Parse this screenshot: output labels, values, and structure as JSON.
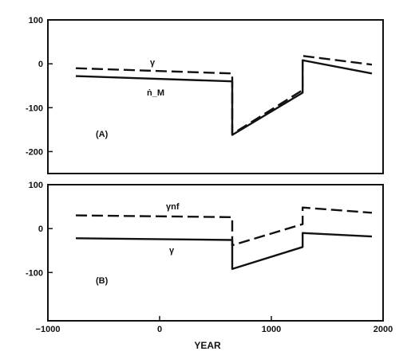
{
  "chart_data": [
    {
      "type": "line",
      "panel_label": "(A)",
      "xlim": [
        -1000,
        2000
      ],
      "ylim": [
        -250,
        100
      ],
      "yticks": [
        100,
        0,
        -100,
        -200
      ],
      "grid": false,
      "series": [
        {
          "name": "γ",
          "style": "dashed",
          "x": [
            -750,
            650,
            650,
            1280,
            1280,
            1900
          ],
          "y": [
            -10,
            -22,
            -160,
            -60,
            18,
            -2
          ]
        },
        {
          "name": "ṅ_M",
          "style": "solid",
          "x": [
            -750,
            650,
            650,
            1280,
            1280,
            1900
          ],
          "y": [
            -28,
            -40,
            -162,
            -66,
            8,
            -22
          ]
        }
      ]
    },
    {
      "type": "line",
      "panel_label": "(B)",
      "xlim": [
        -1000,
        2000
      ],
      "ylim": [
        -210,
        100
      ],
      "yticks": [
        100,
        0,
        -100
      ],
      "grid": false,
      "xlabel": "YEAR",
      "xticks": [
        -1000,
        0,
        1000,
        2000
      ],
      "series": [
        {
          "name": "γnf",
          "style": "dashed",
          "x": [
            -750,
            650,
            650,
            1280,
            1280,
            1900
          ],
          "y": [
            30,
            26,
            -38,
            10,
            48,
            36
          ]
        },
        {
          "name": "γ",
          "style": "solid",
          "x": [
            -750,
            650,
            650,
            1280,
            1280,
            1900
          ],
          "y": [
            -22,
            -26,
            -92,
            -42,
            -10,
            -18
          ]
        }
      ]
    }
  ]
}
